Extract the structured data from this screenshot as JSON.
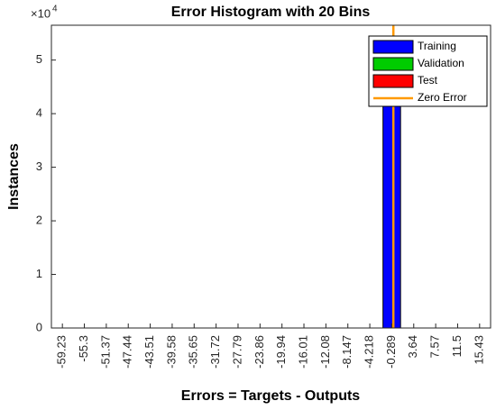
{
  "chart_data": {
    "type": "histogram",
    "title": "Error Histogram with 20 Bins",
    "xlabel": "Errors = Targets - Outputs",
    "ylabel": "Instances",
    "y_multiplier": "×10",
    "y_exponent": "4",
    "categories": [
      "-59.23",
      "-55.3",
      "-51.37",
      "-47.44",
      "-43.51",
      "-39.58",
      "-35.65",
      "-31.72",
      "-27.79",
      "-23.86",
      "-19.94",
      "-16.01",
      "-12.08",
      "-8.147",
      "-4.218",
      "-0.289",
      "3.64",
      "7.57",
      "11.5",
      "15.43"
    ],
    "series": [
      {
        "name": "Training",
        "color": "#0000ff",
        "values": [
          0,
          0,
          0,
          0,
          0,
          0,
          0,
          0,
          0,
          0,
          0,
          0,
          0,
          0,
          0,
          53000,
          0,
          0,
          0,
          0
        ]
      },
      {
        "name": "Validation",
        "color": "#00cc00",
        "values": [
          0,
          0,
          0,
          0,
          0,
          0,
          0,
          0,
          0,
          0,
          0,
          0,
          0,
          0,
          0,
          0,
          0,
          0,
          0,
          0
        ]
      },
      {
        "name": "Test",
        "color": "#ff0000",
        "values": [
          0,
          0,
          0,
          0,
          0,
          0,
          0,
          0,
          0,
          0,
          0,
          0,
          0,
          0,
          0,
          0,
          0,
          0,
          0,
          0
        ]
      }
    ],
    "zero_error": {
      "name": "Zero Error",
      "color": "#ff9900",
      "x": 0
    },
    "ylim": [
      0,
      56500
    ],
    "yticks": [
      0,
      {
        "value": 10000,
        "label": "1"
      },
      {
        "value": 20000,
        "label": "2"
      },
      {
        "value": 30000,
        "label": "3"
      },
      {
        "value": 40000,
        "label": "4"
      },
      {
        "value": 50000,
        "label": "5"
      }
    ]
  }
}
